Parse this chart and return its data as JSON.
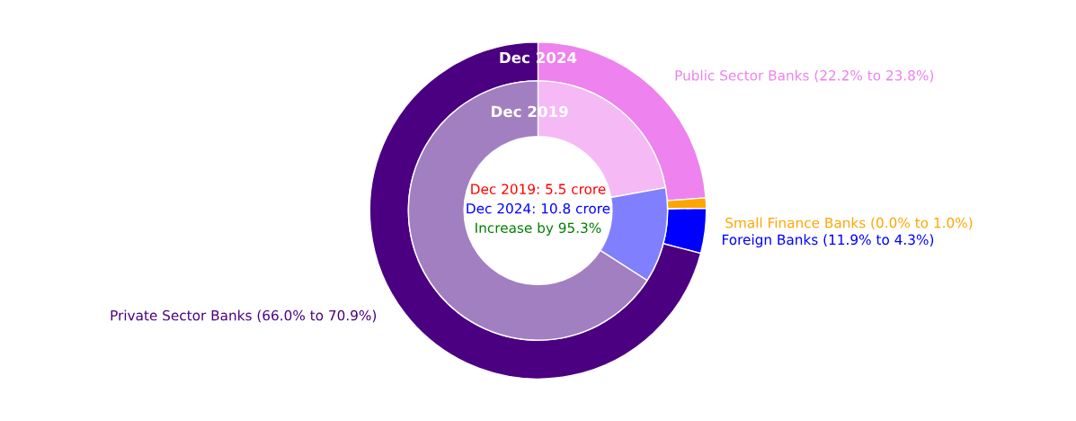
{
  "chart_data": {
    "type": "donut",
    "categories": [
      "Public Sector Banks (22.2% to 23.8%)",
      "Small Finance Banks (0.0% to 1.0%)",
      "Foreign Banks (11.9% to 4.3%)",
      "Private Sector Banks (66.0% to 70.9%)"
    ],
    "series": [
      {
        "name": "Dec 2024",
        "values": [
          23.8,
          1.0,
          4.3,
          70.9
        ],
        "colors": [
          "#ee82ee",
          "#ffa500",
          "#0000ff",
          "#4b0082"
        ]
      },
      {
        "name": "Dec 2019",
        "values": [
          22.2,
          0.0,
          11.9,
          66.0
        ],
        "colors": [
          "#f5b9f5",
          "#ffd280",
          "#8080ff",
          "#a27fc0"
        ]
      }
    ],
    "annotations": [
      "Dec 2019: 5.5 crore",
      "Dec 2024: 10.8 crore",
      "Increase by 95.3%"
    ],
    "legend": false
  }
}
